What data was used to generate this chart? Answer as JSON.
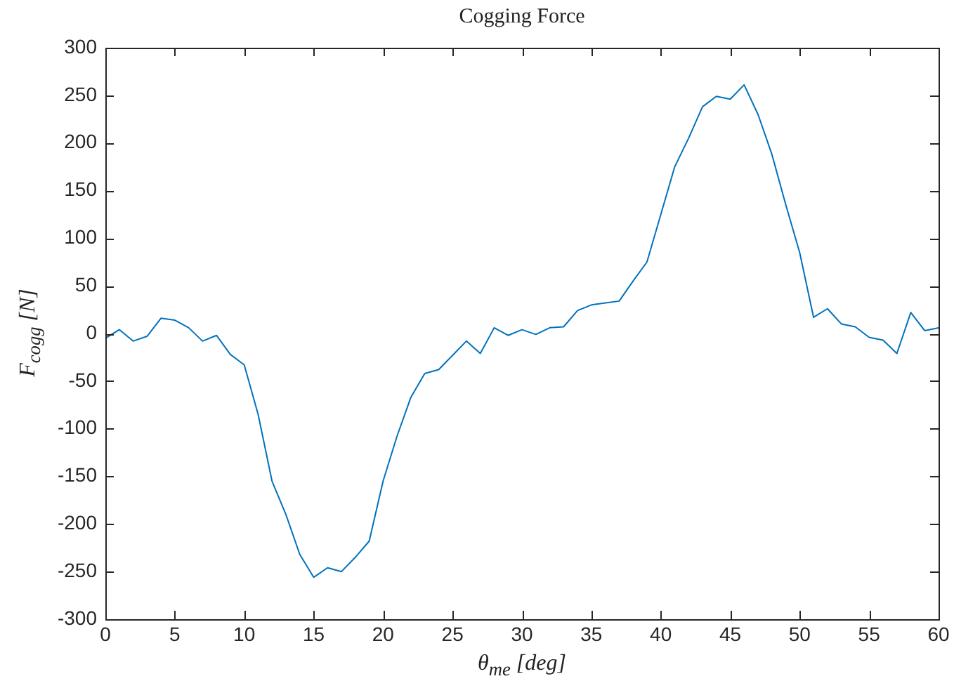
{
  "chart_data": {
    "type": "line",
    "title": "Cogging Force",
    "xlabel": "θ$_{me}$ [deg]",
    "ylabel": "F$_{cogg}$ [N]",
    "x": [
      0,
      1,
      2,
      3,
      4,
      5,
      6,
      7,
      8,
      9,
      10,
      11,
      12,
      13,
      14,
      15,
      16,
      17,
      18,
      19,
      20,
      21,
      22,
      23,
      24,
      25,
      26,
      27,
      28,
      29,
      30,
      31,
      32,
      33,
      34,
      35,
      36,
      37,
      38,
      39,
      40,
      41,
      42,
      43,
      44,
      45,
      46,
      47,
      48,
      49,
      50,
      51,
      52,
      53,
      54,
      55,
      56,
      57,
      58,
      59,
      60
    ],
    "series": [
      {
        "color": "#0072bd",
        "values": [
          -5,
          4,
          -8,
          -3,
          16,
          14,
          6,
          -8,
          -2,
          -22,
          -33,
          -85,
          -155,
          -190,
          -232,
          -256,
          -246,
          -250,
          -235,
          -218,
          -155,
          -108,
          -67,
          -42,
          -38,
          -23,
          -8,
          -21,
          6,
          -2,
          4,
          -1,
          6,
          7,
          24,
          30,
          32,
          34,
          55,
          75,
          125,
          175,
          205,
          238,
          249,
          246,
          261,
          230,
          188,
          135,
          85,
          17,
          26,
          10,
          7,
          -4,
          -7,
          -21,
          22,
          3,
          6
        ]
      }
    ],
    "xlim": [
      0,
      60
    ],
    "xticks": [
      0,
      5,
      10,
      15,
      20,
      25,
      30,
      35,
      40,
      45,
      50,
      55,
      60
    ],
    "ylim": [
      -300,
      300
    ],
    "yticks": [
      -300,
      -250,
      -200,
      -150,
      -100,
      -50,
      0,
      50,
      100,
      150,
      200,
      250,
      300
    ],
    "grid": false,
    "legend": false,
    "marker": "none",
    "line_style": "solid"
  }
}
